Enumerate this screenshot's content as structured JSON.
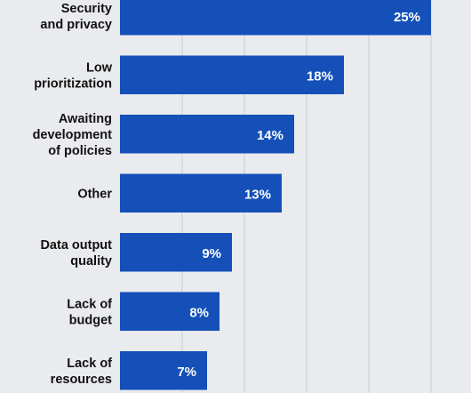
{
  "chart_data": {
    "type": "bar",
    "orientation": "horizontal",
    "categories": [
      "Security\nand privacy",
      "Low\nprioritization",
      "Awaiting\ndevelopment\nof policies",
      "Other",
      "Data output\nquality",
      "Lack of\nbudget",
      "Lack of\nresources"
    ],
    "values": [
      25,
      18,
      14,
      13,
      9,
      8,
      7
    ],
    "value_labels": [
      "25%",
      "18%",
      "14%",
      "13%",
      "9%",
      "8%",
      "7%"
    ],
    "unit": "%",
    "xlim": [
      0,
      30
    ],
    "grid": true,
    "colors": {
      "bar": "#1450b8",
      "background": "#e9ebee",
      "grid": "#c9ccd1",
      "label_text": "#111111",
      "value_text": "#ffffff"
    }
  }
}
